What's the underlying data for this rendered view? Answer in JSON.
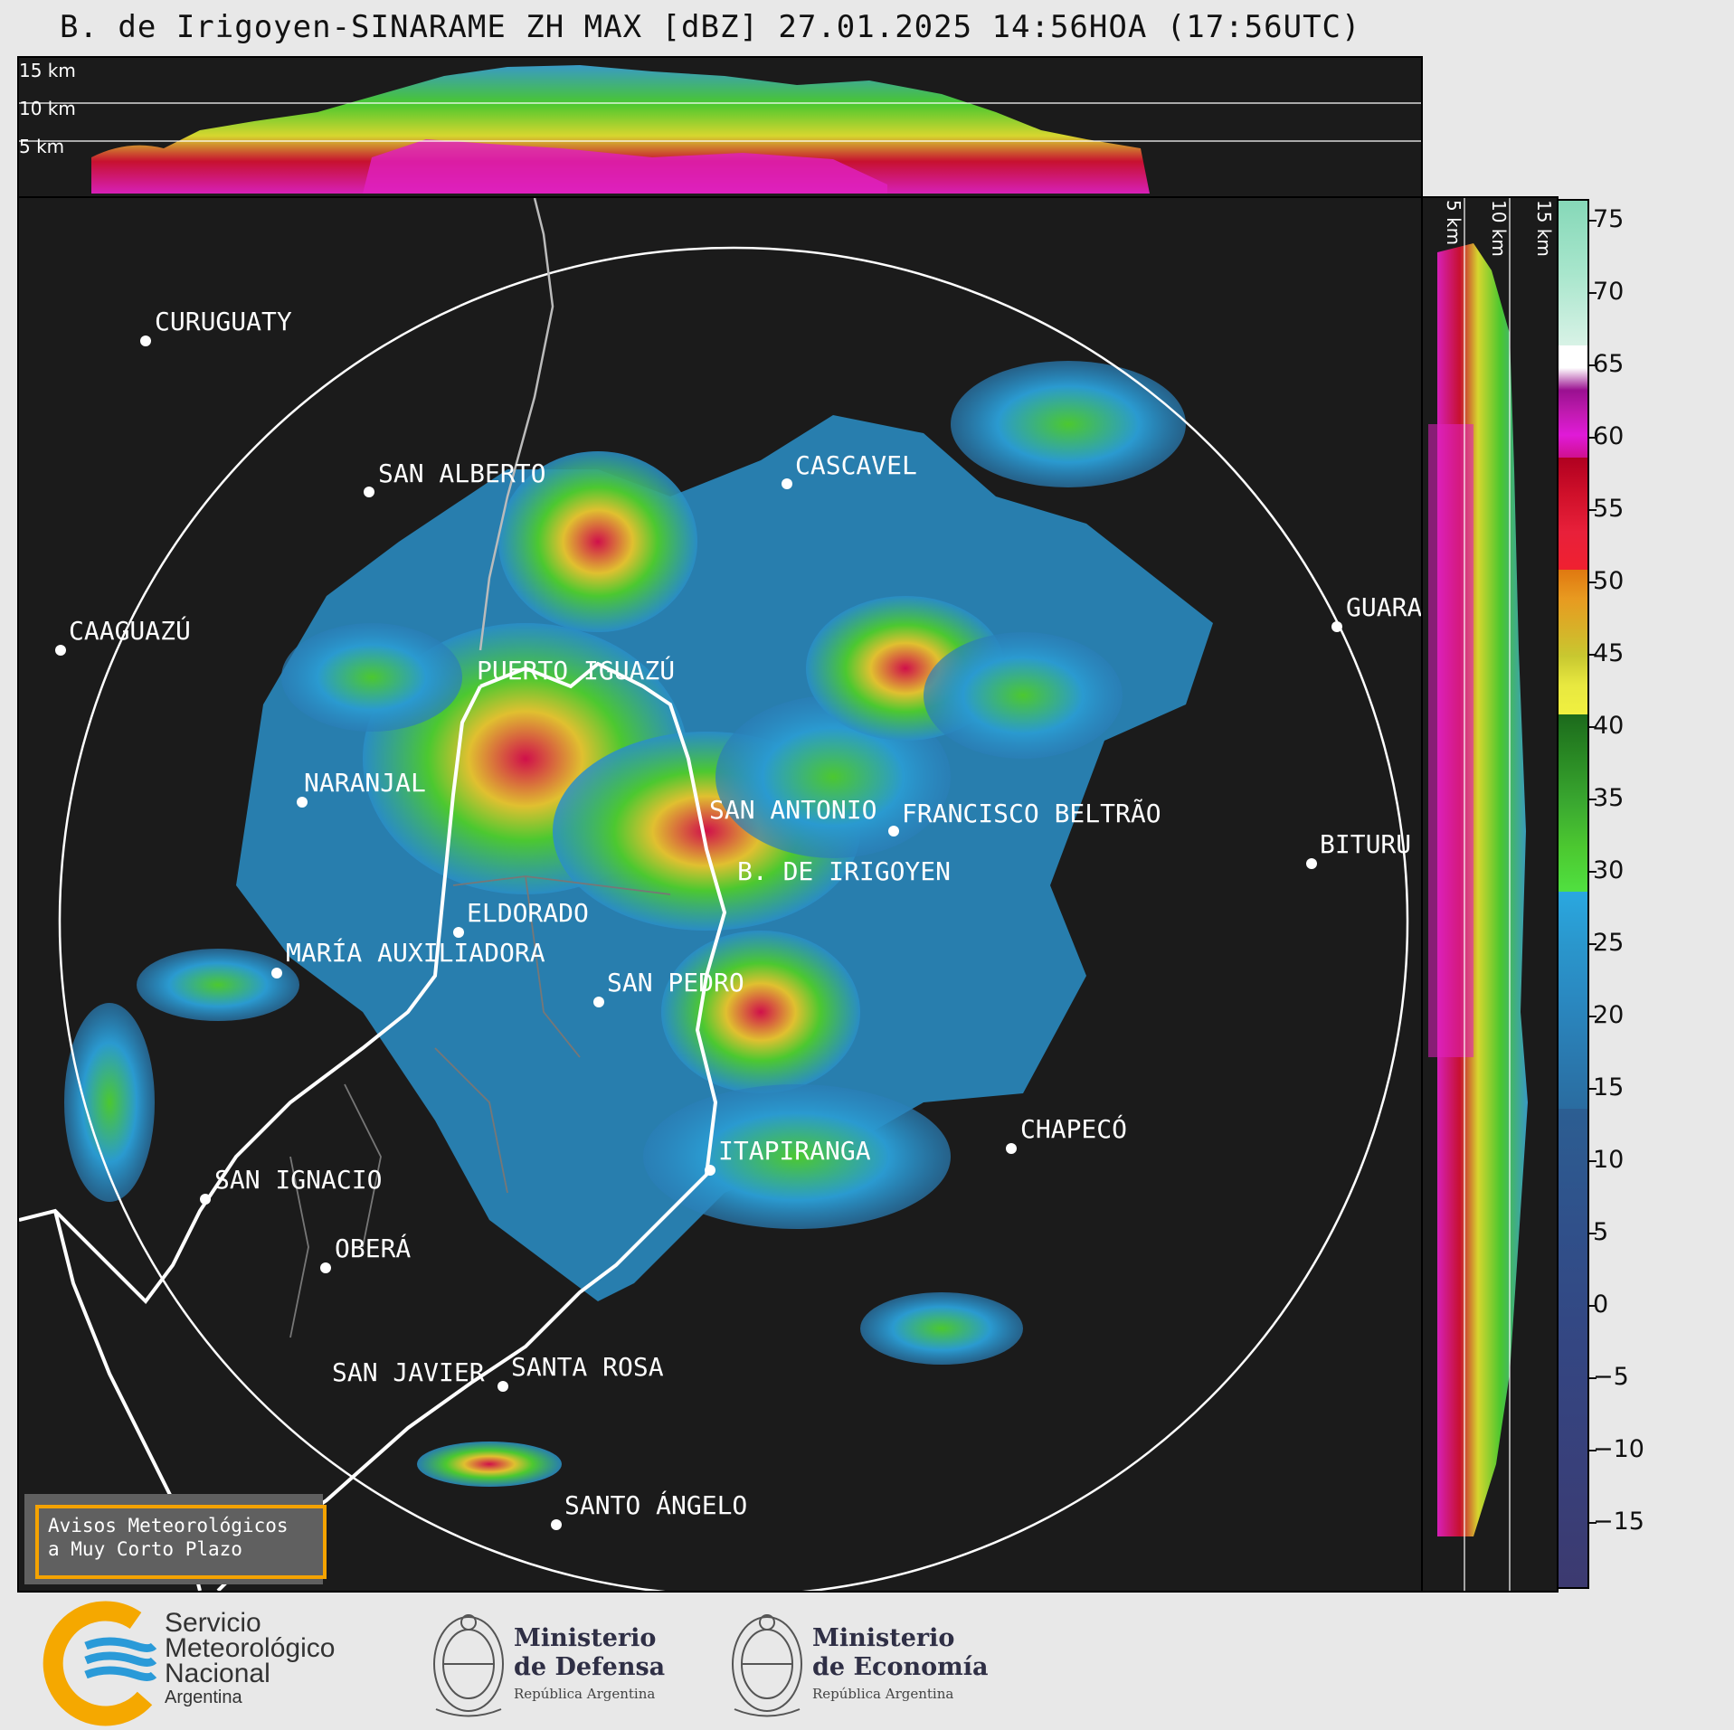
{
  "title": "B. de Irigoyen-SINARAME ZH MAX [dBZ] 27.01.2025 14:56HOA (17:56UTC)",
  "profile_labels": {
    "h15": "15 km",
    "h10": "10 km",
    "h5": "5 km"
  },
  "cities": [
    {
      "name": "CURUGUATY"
    },
    {
      "name": "SAN ALBERTO"
    },
    {
      "name": "CASCAVEL"
    },
    {
      "name": "CAAGUAZÚ"
    },
    {
      "name": "GUARA"
    },
    {
      "name": "PUERTO IGUAZÚ"
    },
    {
      "name": "NARANJAL"
    },
    {
      "name": "SAN ANTONIO"
    },
    {
      "name": "FRANCISCO BELTRÃO"
    },
    {
      "name": "BITURU"
    },
    {
      "name": "B. DE IRIGOYEN"
    },
    {
      "name": "ELDORADO"
    },
    {
      "name": "MARÍA AUXILIADORA"
    },
    {
      "name": "SAN PEDRO"
    },
    {
      "name": "CHAPECÓ"
    },
    {
      "name": "ITAPIRANGA"
    },
    {
      "name": "SAN IGNACIO"
    },
    {
      "name": "OBERÁ"
    },
    {
      "name": "SAN JAVIER"
    },
    {
      "name": "SANTA ROSA"
    },
    {
      "name": "SANTO ÁNGELO"
    }
  ],
  "colorbar": {
    "ticks": [
      "75",
      "70",
      "65",
      "60",
      "55",
      "50",
      "45",
      "40",
      "35",
      "30",
      "25",
      "20",
      "15",
      "10",
      "5",
      "0",
      "−5",
      "−10",
      "−15"
    ]
  },
  "warning": {
    "line1": "Avisos Meteorológicos",
    "line2": "a Muy Corto Plazo",
    "border_color": "#f5a300"
  },
  "footer": {
    "smn": {
      "line1": "Servicio",
      "line2": "Meteorológico",
      "line3": "Nacional",
      "line4": "Argentina"
    },
    "defensa": {
      "line1": "Ministerio",
      "line2": "de Defensa",
      "sub": "República Argentina"
    },
    "economia": {
      "line1": "Ministerio",
      "line2": "de Economía",
      "sub": "República Argentina"
    }
  }
}
